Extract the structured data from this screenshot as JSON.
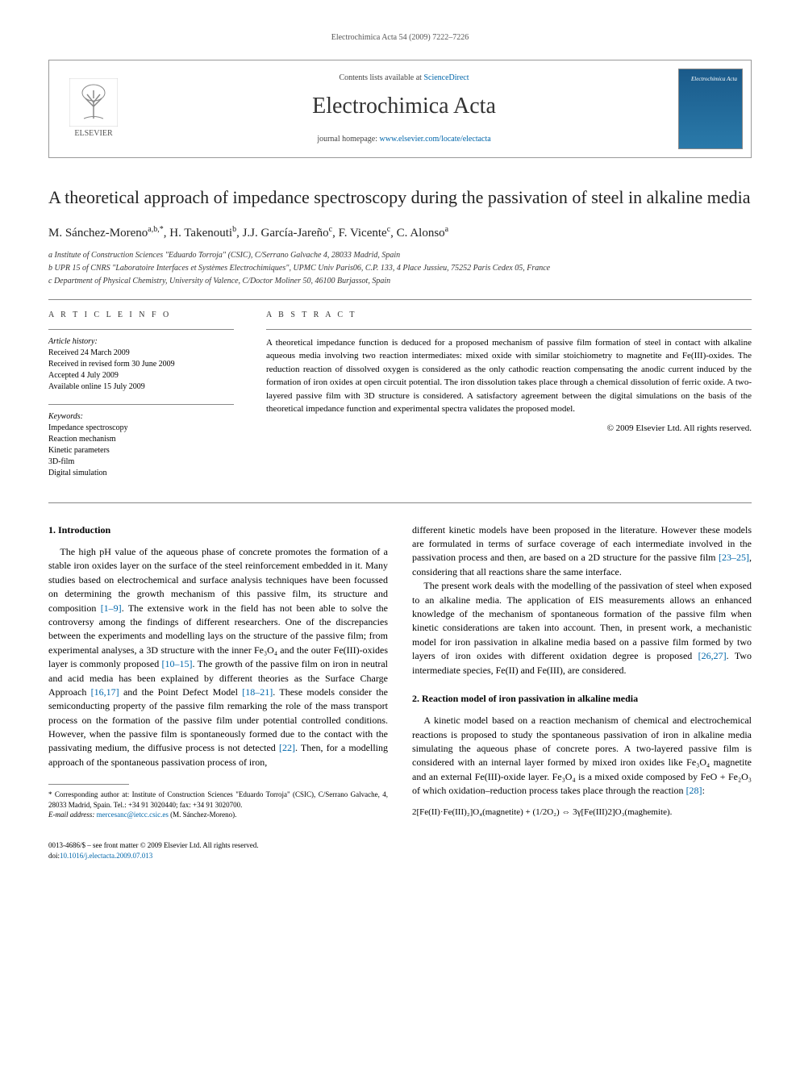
{
  "page_header": "Electrochimica Acta 54 (2009) 7222–7226",
  "masthead": {
    "contents_text": "Contents lists available at ",
    "contents_link": "ScienceDirect",
    "journal_name": "Electrochimica Acta",
    "homepage_prefix": "journal homepage: ",
    "homepage_url": "www.elsevier.com/locate/electacta",
    "publisher": "ELSEVIER",
    "cover_text": "Electrochimica Acta"
  },
  "article": {
    "title": "A theoretical approach of impedance spectroscopy during the passivation of steel in alkaline media",
    "authors_html": "M. Sánchez-Moreno<sup>a,b,*</sup>, H. Takenouti<sup>b</sup>, J.J. García-Jareño<sup>c</sup>, F. Vicente<sup>c</sup>, C. Alonso<sup>a</sup>",
    "affiliations": [
      "a Institute of Construction Sciences \"Eduardo Torroja\" (CSIC), C/Serrano Galvache 4, 28033 Madrid, Spain",
      "b UPR 15 of CNRS \"Laboratoire Interfaces et Systèmes Electrochimiques\", UPMC Univ Paris06, C.P. 133, 4 Place Jussieu, 75252 Paris Cedex 05, France",
      "c Department of Physical Chemistry, University of Valence, C/Doctor Moliner 50, 46100 Burjassot, Spain"
    ]
  },
  "article_info": {
    "heading": "A R T I C L E  I N F O",
    "history_label": "Article history:",
    "history": [
      "Received 24 March 2009",
      "Received in revised form 30 June 2009",
      "Accepted 4 July 2009",
      "Available online 15 July 2009"
    ],
    "keywords_label": "Keywords:",
    "keywords": [
      "Impedance spectroscopy",
      "Reaction mechanism",
      "Kinetic parameters",
      "3D-film",
      "Digital simulation"
    ]
  },
  "abstract": {
    "heading": "A B S T R A C T",
    "text": "A theoretical impedance function is deduced for a proposed mechanism of passive film formation of steel in contact with alkaline aqueous media involving two reaction intermediates: mixed oxide with similar stoichiometry to magnetite and Fe(III)-oxides. The reduction reaction of dissolved oxygen is considered as the only cathodic reaction compensating the anodic current induced by the formation of iron oxides at open circuit potential. The iron dissolution takes place through a chemical dissolution of ferric oxide. A two-layered passive film with 3D structure is considered. A satisfactory agreement between the digital simulations on the basis of the theoretical impedance function and experimental spectra validates the proposed model.",
    "copyright": "© 2009 Elsevier Ltd. All rights reserved."
  },
  "sections": {
    "intro_heading": "1.  Introduction",
    "intro_p1": "The high pH value of the aqueous phase of concrete promotes the formation of a stable iron oxides layer on the surface of the steel reinforcement embedded in it. Many studies based on electrochemical and surface analysis techniques have been focussed on determining the growth mechanism of this passive film, its structure and composition [1–9]. The extensive work in the field has not been able to solve the controversy among the findings of different researchers. One of the discrepancies between the experiments and modelling lays on the structure of the passive film; from experimental analyses, a 3D structure with the inner Fe₃O₄ and the outer Fe(III)-oxides layer is commonly proposed [10–15]. The growth of the passive film on iron in neutral and acid media has been explained by different theories as the Surface Charge Approach [16,17] and the Point Defect Model [18–21]. These models consider the semiconducting property of the passive film remarking the role of the mass transport process on the formation of the passive film under potential controlled conditions. However, when the passive film is spontaneously formed due to the contact with the passivating medium, the diffusive process is not detected [22]. Then, for a modelling approach of the spontaneous passivation process of iron,",
    "intro_p2": "different kinetic models have been proposed in the literature. However these models are formulated in terms of surface coverage of each intermediate involved in the passivation process and then, are based on a 2D structure for the passive film [23–25], considering that all reactions share the same interface.",
    "intro_p3": "The present work deals with the modelling of the passivation of steel when exposed to an alkaline media. The application of EIS measurements allows an enhanced knowledge of the mechanism of spontaneous formation of the passive film when kinetic considerations are taken into account. Then, in present work, a mechanistic model for iron passivation in alkaline media based on a passive film formed by two layers of iron oxides with different oxidation degree is proposed [26,27]. Two intermediate species, Fe(II) and Fe(III), are considered.",
    "model_heading": "2.  Reaction model of iron passivation in alkaline media",
    "model_p1": "A kinetic model based on a reaction mechanism of chemical and electrochemical reactions is proposed to study the spontaneous passivation of iron in alkaline media simulating the aqueous phase of concrete pores. A two-layered passive film is considered with an internal layer formed by mixed iron oxides like Fe₃O₄ magnetite and an external Fe(III)-oxide layer. Fe₃O₄ is a mixed oxide composed by FeO + Fe₂O₃ of which oxidation–reduction process takes place through the reaction [28]:",
    "formula": "2[Fe(II)·Fe(III)₂]O₄(magnetite) + (1/2O₂) ⇔ 3γ[Fe(III)2]O₃(maghemite)."
  },
  "refs": {
    "r1_9": "[1–9]",
    "r10_15": "[10–15]",
    "r16_17": "[16,17]",
    "r18_21": "[18–21]",
    "r22": "[22]",
    "r23_25": "[23–25]",
    "r26_27": "[26,27]",
    "r28": "[28]"
  },
  "footnote": {
    "corr": "* Corresponding author at: Institute of Construction Sciences \"Eduardo Torroja\" (CSIC), C/Serrano Galvache, 4, 28033 Madrid, Spain. Tel.: +34 91 3020440; fax: +34 91 3020700.",
    "email_label": "E-mail address: ",
    "email": "mercesanc@ietcc.csic.es",
    "email_author": " (M. Sánchez-Moreno)."
  },
  "footer": {
    "issn": "0013-4686/$ – see front matter © 2009 Elsevier Ltd. All rights reserved.",
    "doi_label": "doi:",
    "doi": "10.1016/j.electacta.2009.07.013"
  },
  "colors": {
    "link": "#0066aa",
    "text": "#000000",
    "muted": "#555555",
    "border": "#888888",
    "cover_bg_top": "#1a5a8a",
    "cover_bg_bottom": "#2a7aaa"
  }
}
